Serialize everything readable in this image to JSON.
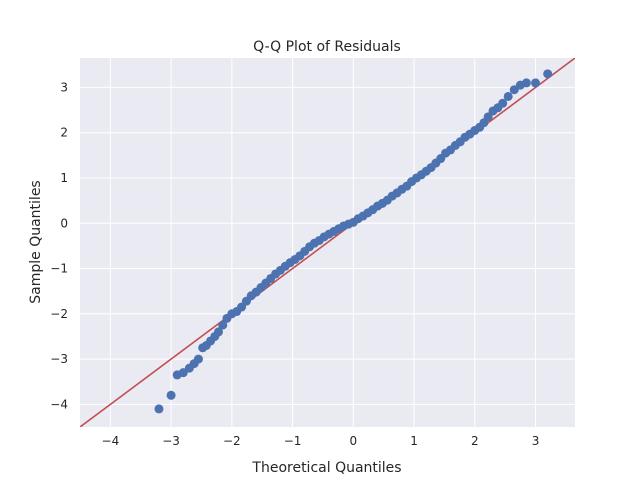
{
  "chart_data": {
    "type": "scatter",
    "title": "Q-Q Plot of Residuals",
    "xlabel": "Theoretical Quantiles",
    "ylabel": "Sample Quantiles",
    "xlim": [
      -4.5,
      3.65
    ],
    "ylim": [
      -4.5,
      3.65
    ],
    "xticks": [
      -4,
      -3,
      -2,
      -1,
      0,
      1,
      2,
      3
    ],
    "yticks": [
      -4,
      -3,
      -2,
      -1,
      0,
      1,
      2,
      3
    ],
    "xtick_labels": [
      "−4",
      "−3",
      "−2",
      "−1",
      "0",
      "1",
      "2",
      "3"
    ],
    "ytick_labels": [
      "−4",
      "−3",
      "−2",
      "−1",
      "0",
      "1",
      "2",
      "3"
    ],
    "grid": true,
    "reference_line": {
      "slope": 1,
      "intercept": 0,
      "color": "#c44e52"
    },
    "colors": {
      "background": "#eaeaf2",
      "grid": "#ffffff",
      "points": "#4c72b0",
      "line": "#c44e52"
    },
    "series": [
      {
        "x": [
          -3.2,
          -3.0,
          -2.9,
          -2.8,
          -2.7,
          -2.62,
          -2.55,
          -2.48,
          -2.42,
          -2.35,
          -2.28,
          -2.22,
          -2.15,
          -2.08,
          -2.0,
          -1.92,
          -1.84,
          -1.76,
          -1.68,
          -1.6,
          -1.52,
          -1.44,
          -1.36,
          -1.28,
          -1.2,
          -1.12,
          -1.04,
          -0.96,
          -0.88,
          -0.8,
          -0.72,
          -0.64,
          -0.56,
          -0.48,
          -0.4,
          -0.32,
          -0.24,
          -0.16,
          -0.08,
          0.0,
          0.08,
          0.16,
          0.24,
          0.32,
          0.4,
          0.48,
          0.56,
          0.64,
          0.72,
          0.8,
          0.88,
          0.96,
          1.04,
          1.12,
          1.2,
          1.28,
          1.36,
          1.44,
          1.52,
          1.6,
          1.68,
          1.76,
          1.84,
          1.92,
          2.0,
          2.08,
          2.15,
          2.22,
          2.3,
          2.38,
          2.46,
          2.55,
          2.65,
          2.75,
          2.85,
          3.0,
          3.2
        ],
        "y": [
          -4.1,
          -3.8,
          -3.35,
          -3.3,
          -3.2,
          -3.1,
          -3.0,
          -2.75,
          -2.7,
          -2.6,
          -2.5,
          -2.4,
          -2.25,
          -2.1,
          -2.0,
          -1.95,
          -1.85,
          -1.72,
          -1.6,
          -1.52,
          -1.42,
          -1.32,
          -1.22,
          -1.12,
          -1.04,
          -0.95,
          -0.87,
          -0.8,
          -0.72,
          -0.62,
          -0.52,
          -0.44,
          -0.38,
          -0.3,
          -0.24,
          -0.18,
          -0.12,
          -0.06,
          -0.02,
          0.02,
          0.1,
          0.16,
          0.23,
          0.3,
          0.38,
          0.44,
          0.51,
          0.6,
          0.67,
          0.75,
          0.82,
          0.92,
          1.0,
          1.07,
          1.15,
          1.23,
          1.33,
          1.43,
          1.55,
          1.62,
          1.72,
          1.8,
          1.9,
          1.97,
          2.05,
          2.12,
          2.22,
          2.35,
          2.48,
          2.55,
          2.65,
          2.8,
          2.95,
          3.05,
          3.1,
          3.1,
          3.3
        ]
      }
    ]
  }
}
